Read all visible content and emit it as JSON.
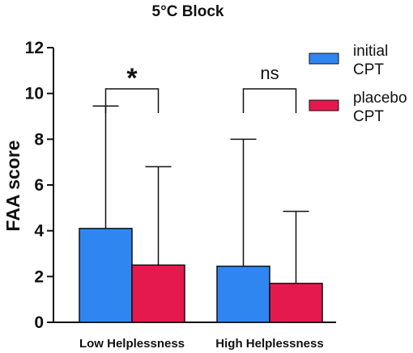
{
  "chart_data": {
    "type": "bar",
    "title": "5°C Block",
    "xlabel": "",
    "ylabel": "FAA score",
    "ylim": [
      0,
      12
    ],
    "yticks": [
      0,
      2,
      4,
      6,
      8,
      10,
      12
    ],
    "categories": [
      "Low Helplessness",
      "High Helplessness"
    ],
    "series": [
      {
        "name": "initial CPT",
        "legend_lines": [
          "initial",
          "CPT"
        ],
        "color": "#2f86f1",
        "values": [
          4.1,
          2.45
        ],
        "error_upper": [
          9.45,
          8.0
        ]
      },
      {
        "name": "placebo CPT",
        "legend_lines": [
          "placebo",
          "CPT"
        ],
        "color": "#e6194e",
        "values": [
          2.5,
          1.7
        ],
        "error_upper": [
          6.8,
          4.85
        ]
      }
    ],
    "annotations": [
      {
        "category": "Low Helplessness",
        "text": "*",
        "bracket_y": 10.2
      },
      {
        "category": "High Helplessness",
        "text": "ns",
        "bracket_y": 10.2
      }
    ],
    "legend_position": "top-right",
    "grid": false
  }
}
